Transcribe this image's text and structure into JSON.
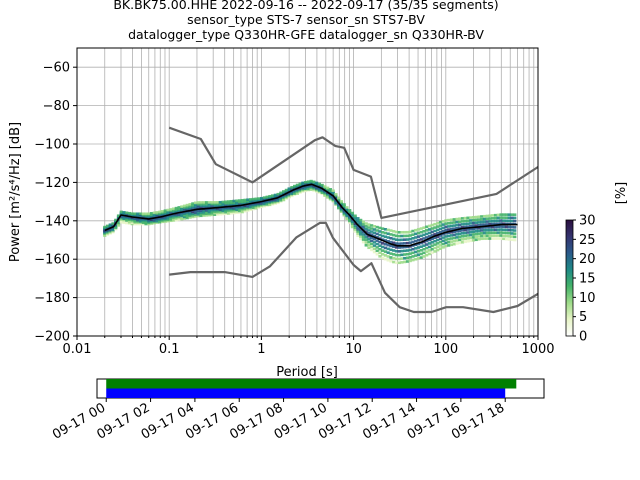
{
  "title_lines": [
    "BK.BK75.00.HHE   2022-09-16 -- 2022-09-17  (35/35 segments)",
    "sensor_type STS-7 sensor_sn STS7-BV",
    "datalogger_type Q330HR-GFE datalogger_sn Q330HR-BV"
  ],
  "chart_data": [
    {
      "type": "heatmap",
      "xlabel": "Period [s]",
      "ylabel": "Power [m²/s⁴/Hz] [dB]",
      "xscale": "log",
      "xlim": [
        0.01,
        1000
      ],
      "ylim": [
        -200,
        -50
      ],
      "xticks": [
        0.01,
        0.1,
        1,
        10,
        100,
        1000
      ],
      "xtick_labels": [
        "0.01",
        "0.1",
        "1",
        "10",
        "100",
        "1000"
      ],
      "yticks": [
        -60,
        -80,
        -100,
        -120,
        -140,
        -160,
        -180,
        -200
      ],
      "ytick_labels": [
        "−60",
        "−80",
        "−100",
        "−120",
        "−140",
        "−160",
        "−180",
        "−200"
      ],
      "grid": true,
      "colorbar": {
        "label": "[%]",
        "range": [
          0,
          30
        ],
        "ticks": [
          0,
          5,
          10,
          15,
          20,
          25,
          30
        ],
        "colors": [
          "#ffffff",
          "#e8f5c8",
          "#9fdc8a",
          "#45b36a",
          "#1f8a86",
          "#2a5a8a",
          "#34336e",
          "#2a0f3f"
        ]
      },
      "series": [
        {
          "name": "noise_model_high",
          "color": "#666666",
          "x": [
            0.1,
            0.22,
            0.32,
            0.8,
            3.8,
            4.6,
            6.3,
            7.9,
            10,
            15.4,
            20,
            354.8,
            1000
          ],
          "y": [
            -91.5,
            -97.4,
            -110.5,
            -120,
            -98,
            -96.5,
            -101,
            -102,
            -113.5,
            -117,
            -138.5,
            -126,
            -112
          ]
        },
        {
          "name": "noise_model_low",
          "color": "#666666",
          "x": [
            0.1,
            0.17,
            0.4,
            0.8,
            1.24,
            2.4,
            4.3,
            5,
            6,
            10,
            12,
            15.6,
            21.9,
            31.6,
            45,
            70,
            101,
            154,
            328,
            600,
            1000
          ],
          "y": [
            -168,
            -166.7,
            -166.7,
            -169.2,
            -163.7,
            -148.6,
            -141.1,
            -141.1,
            -149,
            -163,
            -166.2,
            -162.1,
            -177.5,
            -185,
            -187.5,
            -187.5,
            -185,
            -185,
            -187.5,
            -184.4,
            -178
          ]
        },
        {
          "name": "mean",
          "color": "#000000",
          "x": [
            0.02,
            0.025,
            0.03,
            0.04,
            0.06,
            0.08,
            0.12,
            0.2,
            0.35,
            0.6,
            1,
            1.5,
            2.2,
            2.8,
            3.5,
            4.5,
            6,
            7.5,
            9,
            11,
            14,
            20,
            25,
            30,
            40,
            55,
            75,
            100,
            150,
            250,
            400,
            600
          ],
          "y": [
            -145,
            -143,
            -137,
            -138,
            -139,
            -138,
            -136,
            -134,
            -133,
            -132,
            -130,
            -128,
            -124,
            -122,
            -121,
            -123,
            -127,
            -133,
            -137,
            -142,
            -147,
            -150,
            -152,
            -153,
            -153,
            -151,
            -148,
            -146,
            -144,
            -143,
            -142,
            -142
          ]
        }
      ],
      "density_band": {
        "x": [
          0.02,
          0.025,
          0.03,
          0.04,
          0.06,
          0.08,
          0.12,
          0.2,
          0.35,
          0.6,
          1,
          1.5,
          2.2,
          2.8,
          3.5,
          4.5,
          6,
          7.5,
          9,
          11,
          14,
          20,
          25,
          30,
          40,
          55,
          75,
          100,
          150,
          250,
          400,
          600
        ],
        "y_low": [
          -148,
          -146,
          -141,
          -142,
          -142,
          -141,
          -140,
          -138,
          -137,
          -136,
          -133,
          -131,
          -127,
          -125,
          -124,
          -126,
          -130,
          -136,
          -141,
          -148,
          -154,
          -160,
          -162,
          -163,
          -162,
          -160,
          -157,
          -154,
          -152,
          -150,
          -150,
          -151
        ],
        "y_high": [
          -143,
          -141,
          -135,
          -136,
          -136,
          -135,
          -133,
          -130,
          -130,
          -129,
          -128,
          -126,
          -122,
          -120,
          -119,
          -121,
          -124,
          -130,
          -134,
          -138,
          -141,
          -143,
          -144,
          -145,
          -145,
          -143,
          -141,
          -139,
          -138,
          -137,
          -136,
          -136
        ]
      }
    },
    {
      "type": "bar",
      "name": "data_coverage",
      "xlim": [
        "2022-09-16 23:35",
        "2022-09-17 19:45"
      ],
      "xtick_labels": [
        "09-17 00",
        "09-17 02",
        "09-17 04",
        "09-17 06",
        "09-17 08",
        "09-17 10",
        "09-17 12",
        "09-17 14",
        "09-17 16",
        "09-17 18"
      ],
      "bars": [
        {
          "color": "#008000",
          "start": "2022-09-17 00:00",
          "end": "2022-09-17 18:30"
        },
        {
          "color": "#0000ff",
          "start": "2022-09-17 00:00",
          "end": "2022-09-17 18:00"
        }
      ]
    }
  ]
}
